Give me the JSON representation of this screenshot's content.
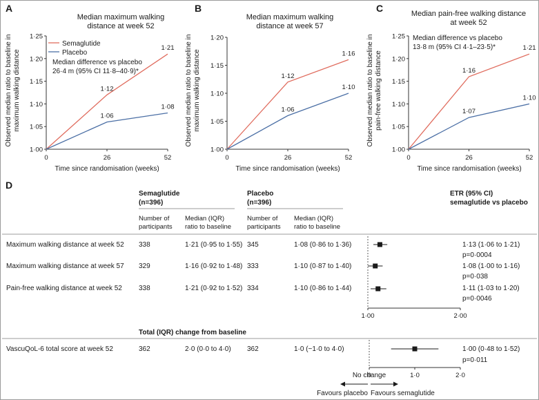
{
  "colors": {
    "semaglutide": "#e06c5e",
    "placebo": "#4b6fa5",
    "axis": "#333333",
    "rule": "#7a7a7a"
  },
  "chart_data": [
    {
      "panel": "A",
      "type": "line",
      "title_lines": [
        "Median maximum walking",
        "distance at week 52"
      ],
      "ylabel_lines": [
        "Observed median ratio to baseline in",
        "maximum walking distance"
      ],
      "xlabel": "Time since randomisation (weeks)",
      "x": [
        0,
        26,
        52
      ],
      "x_ticks": [
        "0",
        "26",
        "52"
      ],
      "ylim": [
        1.0,
        1.25
      ],
      "y_ticks": [
        "1·00",
        "1·05",
        "1·10",
        "1·15",
        "1·20",
        "1·25"
      ],
      "series": [
        {
          "name": "Semaglutide",
          "values": [
            1.0,
            1.12,
            1.21
          ],
          "labels": [
            "",
            "1·12",
            "1·21"
          ]
        },
        {
          "name": "Placebo",
          "values": [
            1.0,
            1.06,
            1.08
          ],
          "labels": [
            "",
            "1·06",
            "1·08"
          ]
        }
      ],
      "legend": [
        "Semaglutide",
        "Placebo"
      ],
      "annotation_lines": [
        "Median difference vs placebo",
        "26·4 m (95% CI 11·8–40·9)*"
      ]
    },
    {
      "panel": "B",
      "type": "line",
      "title_lines": [
        "Median maximum walking",
        "distance at week 57"
      ],
      "ylabel_lines": [
        "Observed median ratio to baseline in",
        "maximum walking distance"
      ],
      "xlabel": "Time since randomisation (weeks)",
      "x": [
        0,
        26,
        52
      ],
      "x_ticks": [
        "0",
        "26",
        "52"
      ],
      "ylim": [
        1.0,
        1.2
      ],
      "y_ticks": [
        "1·00",
        "1·05",
        "1·10",
        "1·15",
        "1·20"
      ],
      "series": [
        {
          "name": "Semaglutide",
          "values": [
            1.0,
            1.12,
            1.16
          ],
          "labels": [
            "",
            "1·12",
            "1·16"
          ]
        },
        {
          "name": "Placebo",
          "values": [
            1.0,
            1.06,
            1.1
          ],
          "labels": [
            "",
            "1·06",
            "1·10"
          ]
        }
      ]
    },
    {
      "panel": "C",
      "type": "line",
      "title_lines": [
        "Median pain-free walking distance",
        "at week 52"
      ],
      "ylabel_lines": [
        "Observed median ratio to baseline in",
        "pain-free walking distance"
      ],
      "xlabel": "Time since randomisation (weeks)",
      "x": [
        0,
        26,
        52
      ],
      "x_ticks": [
        "0",
        "26",
        "52"
      ],
      "ylim": [
        1.0,
        1.25
      ],
      "y_ticks": [
        "1·00",
        "1·05",
        "1·10",
        "1·15",
        "1·20",
        "1·25"
      ],
      "series": [
        {
          "name": "Semaglutide",
          "values": [
            1.0,
            1.16,
            1.21
          ],
          "labels": [
            "",
            "1·16",
            "1·21"
          ]
        },
        {
          "name": "Placebo",
          "values": [
            1.0,
            1.07,
            1.1
          ],
          "labels": [
            "",
            "1·07",
            "1·10"
          ]
        }
      ],
      "annotation_lines": [
        "Median difference vs placebo",
        "13·8 m (95% CI 4·1–23·5)*"
      ]
    },
    {
      "panel": "D",
      "type": "forest",
      "headers": {
        "semaglutide": [
          "Semaglutide",
          "(n=396)"
        ],
        "placebo": [
          "Placebo",
          "(n=396)"
        ],
        "etr": [
          "ETR (95% CI)",
          "semaglutide vs placebo"
        ],
        "number": [
          "Number of",
          "participants"
        ],
        "median": [
          "Median (IQR)",
          "ratio to baseline"
        ],
        "total": "Total (IQR) change from baseline"
      },
      "rows": [
        {
          "label": "Maximum walking distance at week 52",
          "sema_n": "338",
          "sema_median": "1·21 (0·95 to 1·55)",
          "pbo_n": "345",
          "pbo_median": "1·08 (0·86 to 1·36)",
          "etr": "1·13 (1·06 to 1·21)",
          "p": "p=0·0004",
          "est": 1.13,
          "lo": 1.06,
          "hi": 1.21
        },
        {
          "label": "Maximum walking distance at week 57",
          "sema_n": "329",
          "sema_median": "1·16 (0·92 to 1·48)",
          "pbo_n": "333",
          "pbo_median": "1·10 (0·87 to 1·40)",
          "etr": "1·08 (1·00 to 1·16)",
          "p": "p=0·038",
          "est": 1.08,
          "lo": 1.0,
          "hi": 1.16
        },
        {
          "label": "Pain-free walking distance at week 52",
          "sema_n": "338",
          "sema_median": "1·21 (0·92 to 1·52)",
          "pbo_n": "334",
          "pbo_median": "1·10 (0·86 to 1·44)",
          "etr": "1·11 (1·03 to 1·20)",
          "p": "p=0·0046",
          "est": 1.11,
          "lo": 1.03,
          "hi": 1.2
        }
      ],
      "axis_range": [
        1.0,
        2.0
      ],
      "axis_ticks": [
        "1·00",
        "2·00"
      ],
      "qol_row": {
        "label": "VascuQoL-6 total score at week 52",
        "sema_n": "362",
        "sema_value": "2·0 (0·0 to 4·0)",
        "pbo_n": "362",
        "pbo_value": "1·0 (−1·0 to 4·0)",
        "etr": "1·00 (0·48 to 1·52)",
        "p": "p=0·011",
        "est": 1.0,
        "lo": 0.48,
        "hi": 1.52
      },
      "qol_axis_range": [
        0,
        2
      ],
      "qol_ticks": [
        "0",
        "1·0",
        "2·0"
      ],
      "no_change_label": "No change",
      "favours_placebo": "Favours placebo",
      "favours_semaglutide": "Favours semaglutide"
    }
  ]
}
